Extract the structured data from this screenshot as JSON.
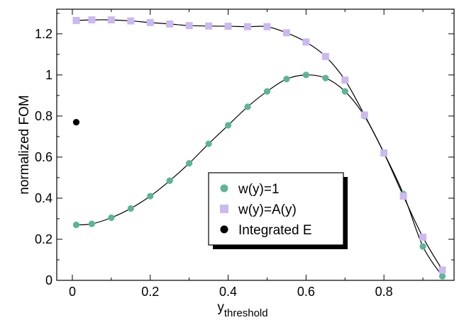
{
  "chart_data": {
    "type": "scatter",
    "xlabel": "y",
    "xlabel_subscript": "threshold",
    "ylabel": "normalized FOM",
    "xlim": [
      -0.04,
      0.98
    ],
    "ylim": [
      0,
      1.32
    ],
    "xticks": [
      0,
      0.2,
      0.4,
      0.6,
      0.8
    ],
    "xtick_labels": [
      "0",
      "0.2",
      "0.4",
      "0.6",
      "0.8"
    ],
    "yticks": [
      0,
      0.2,
      0.4,
      0.6,
      0.8,
      1,
      1.2
    ],
    "ytick_labels": [
      "0",
      "0.2",
      "0.4",
      "0.6",
      "0.8",
      "1",
      "1.2"
    ],
    "grid": false,
    "legend_position": "lower-center",
    "series": [
      {
        "name": "w(y)=1",
        "marker": "circle",
        "color": "#5bb596",
        "line": true,
        "x": [
          0.01,
          0.05,
          0.1,
          0.15,
          0.2,
          0.25,
          0.3,
          0.35,
          0.4,
          0.45,
          0.5,
          0.55,
          0.6,
          0.65,
          0.7,
          0.75,
          0.8,
          0.85,
          0.9,
          0.95
        ],
        "y": [
          0.27,
          0.275,
          0.305,
          0.35,
          0.41,
          0.485,
          0.57,
          0.665,
          0.755,
          0.845,
          0.92,
          0.98,
          1.0,
          0.985,
          0.92,
          0.8,
          0.62,
          0.42,
          0.165,
          0.02
        ]
      },
      {
        "name": "w(y)=A(y)",
        "marker": "square",
        "color": "#cbb9f0",
        "line": true,
        "x": [
          0.01,
          0.05,
          0.1,
          0.15,
          0.2,
          0.25,
          0.3,
          0.35,
          0.4,
          0.45,
          0.5,
          0.55,
          0.6,
          0.65,
          0.7,
          0.75,
          0.8,
          0.85,
          0.9,
          0.95
        ],
        "y": [
          1.265,
          1.268,
          1.268,
          1.263,
          1.255,
          1.248,
          1.24,
          1.238,
          1.237,
          1.235,
          1.235,
          1.205,
          1.16,
          1.09,
          0.975,
          0.805,
          0.62,
          0.41,
          0.21,
          0.05
        ]
      },
      {
        "name": "Integrated E",
        "marker": "circle",
        "color": "#000000",
        "line": false,
        "x": [
          0.01
        ],
        "y": [
          0.77
        ]
      }
    ]
  }
}
